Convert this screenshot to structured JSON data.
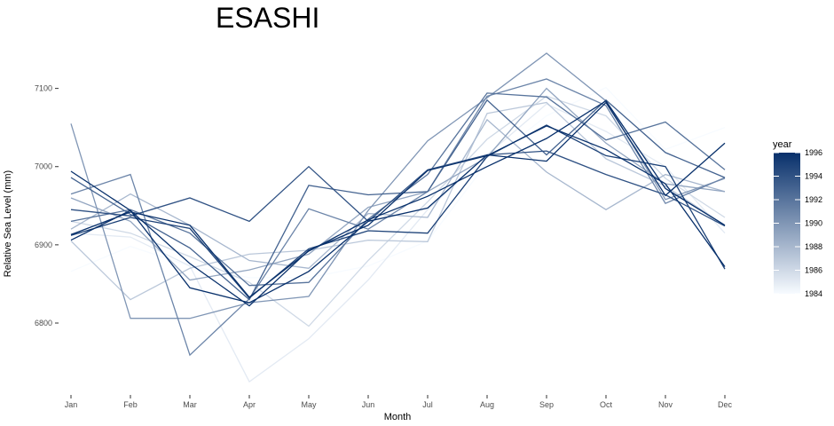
{
  "chart_data": {
    "type": "line",
    "title": "ESASHI",
    "xlabel": "Month",
    "ylabel": "Relative Sea Level (mm)",
    "categories": [
      "Jan",
      "Feb",
      "Mar",
      "Apr",
      "May",
      "Jun",
      "Jul",
      "Aug",
      "Sep",
      "Oct",
      "Nov",
      "Dec"
    ],
    "yticks": [
      6800,
      6900,
      7000,
      7100
    ],
    "ylim": [
      6712,
      7162
    ],
    "grid": false,
    "legend": {
      "title": "year",
      "position": "right",
      "type": "colorbar",
      "range": [
        1984,
        1996
      ],
      "ticks": [
        1984,
        1986,
        1988,
        1990,
        1992,
        1994,
        1996
      ],
      "low_color": "#f7fbff",
      "high_color": "#08306b"
    },
    "series": [
      {
        "year": 1984,
        "values": [
          6866,
          6898,
          6873,
          6858,
          6858,
          6873,
          6905,
          7005,
          7065,
          7101,
          7022,
          7050
        ]
      },
      {
        "year": 1985,
        "values": [
          6915,
          6910,
          6873,
          6725,
          6780,
          6855,
          6945,
          7015,
          7080,
          7045,
          7000,
          6915
        ]
      },
      {
        "year": 1986,
        "values": [
          6930,
          6915,
          6885,
          6852,
          6796,
          6880,
          6955,
          7035,
          7090,
          7065,
          6985,
          6935
        ]
      },
      {
        "year": 1987,
        "values": [
          6905,
          6830,
          6870,
          6888,
          6893,
          6906,
          6904,
          7068,
          7082,
          7010,
          6975,
          6925
        ]
      },
      {
        "year": 1988,
        "values": [
          6920,
          6965,
          6925,
          6880,
          6870,
          6940,
          6935,
          7060,
          6993,
          6945,
          6990,
          6968
        ]
      },
      {
        "year": 1989,
        "values": [
          6960,
          6930,
          6855,
          6868,
          6888,
          6948,
          6968,
          7012,
          7100,
          7030,
          6978,
          6968
        ]
      },
      {
        "year": 1990,
        "values": [
          7055,
          6806,
          6806,
          6826,
          6834,
          6944,
          7033,
          7088,
          7145,
          7084,
          6958,
          6985
        ]
      },
      {
        "year": 1991,
        "values": [
          6965,
          6990,
          6759,
          6831,
          6946,
          6920,
          6968,
          7090,
          7112,
          7078,
          6953,
          6986
        ]
      },
      {
        "year": 1992,
        "values": [
          6930,
          6945,
          6915,
          6848,
          6852,
          6933,
          6990,
          7094,
          7089,
          7034,
          7057,
          6996
        ]
      },
      {
        "year": 1993,
        "values": [
          6986,
          6939,
          6896,
          6830,
          6976,
          6964,
          6968,
          7085,
          7015,
          7085,
          7018,
          6986
        ]
      },
      {
        "year": 1994,
        "values": [
          6945,
          6937,
          6960,
          6930,
          7000,
          6930,
          6996,
          7015,
          7020,
          6990,
          6964,
          6924
        ]
      },
      {
        "year": 1995,
        "values": [
          6912,
          6935,
          6921,
          6832,
          6895,
          6918,
          6915,
          7013,
          7053,
          7014,
          7000,
          6869
        ]
      },
      {
        "year": 1996,
        "values": [
          6906,
          6944,
          6845,
          6826,
          6866,
          6930,
          6947,
          7015,
          7007,
          7082,
          6963,
          7030
        ]
      },
      {
        "year": 1997,
        "values": [
          6994,
          6944,
          6876,
          6822,
          6893,
          6925,
          6995,
          7014,
          7052,
          7022,
          6978,
          6872
        ]
      },
      {
        "year": 1998,
        "values": [
          6913,
          6942,
          6925,
          6833,
          6892,
          6932,
          6962,
          7000,
          7036,
          7084,
          6972,
          6925
        ]
      }
    ]
  }
}
